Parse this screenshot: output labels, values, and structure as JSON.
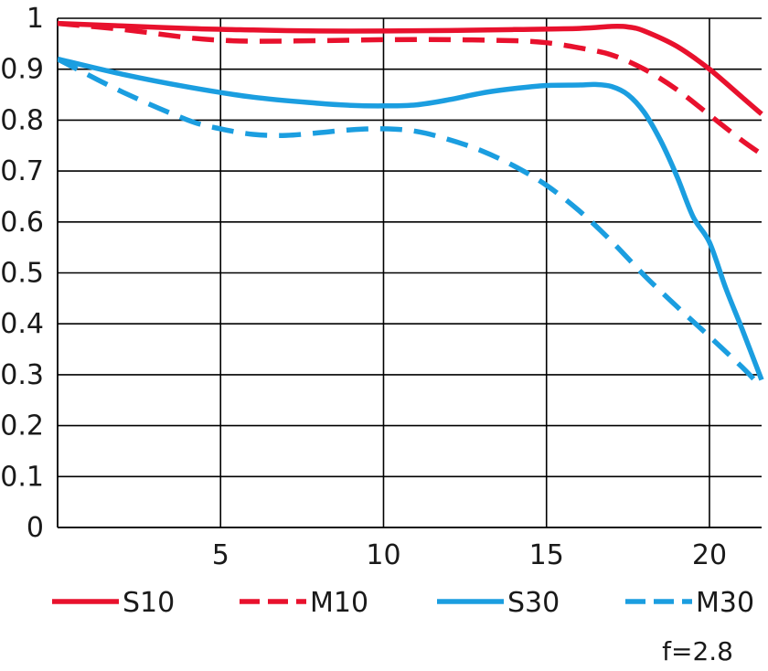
{
  "chart_data": {
    "type": "line",
    "title": "",
    "xlabel": "",
    "ylabel": "",
    "xlim": [
      0,
      21.6
    ],
    "ylim": [
      0,
      1
    ],
    "x_ticks": [
      5,
      10,
      15,
      20
    ],
    "x_tick_labels": [
      "5",
      "10",
      "15",
      "20"
    ],
    "y_ticks": [
      0,
      0.1,
      0.2,
      0.3,
      0.4,
      0.5,
      0.6,
      0.7,
      0.8,
      0.9,
      1
    ],
    "y_tick_labels": [
      "0",
      "0.1",
      "0.2",
      "0.3",
      "0.4",
      "0.5",
      "0.6",
      "0.7",
      "0.8",
      "0.9",
      "1"
    ],
    "grid": true,
    "legend_position": "bottom",
    "note": "f=2.8",
    "series": [
      {
        "name": "S10",
        "color": "#e8112d",
        "dashed": false,
        "x": [
          0,
          2,
          4,
          6,
          8,
          10,
          12,
          14,
          16,
          17,
          17.5,
          18,
          19,
          20,
          21,
          21.6
        ],
        "y": [
          0.99,
          0.985,
          0.98,
          0.977,
          0.975,
          0.975,
          0.976,
          0.978,
          0.98,
          0.984,
          0.983,
          0.975,
          0.945,
          0.9,
          0.845,
          0.812
        ]
      },
      {
        "name": "M10",
        "color": "#e8112d",
        "dashed": true,
        "x": [
          0,
          2,
          4,
          5,
          6,
          8,
          10,
          12,
          14,
          15,
          16,
          17,
          18,
          19,
          20,
          21,
          21.6
        ],
        "y": [
          0.99,
          0.978,
          0.962,
          0.957,
          0.955,
          0.956,
          0.958,
          0.958,
          0.956,
          0.952,
          0.942,
          0.928,
          0.9,
          0.86,
          0.81,
          0.76,
          0.733
        ]
      },
      {
        "name": "S30",
        "color": "#1b9ee0",
        "dashed": false,
        "x": [
          0,
          2,
          4,
          6,
          8,
          9,
          10,
          11,
          12,
          13,
          14,
          15,
          16,
          16.5,
          17,
          17.5,
          18,
          18.5,
          19,
          19.5,
          20,
          20.5,
          21,
          21.6
        ],
        "y": [
          0.92,
          0.89,
          0.865,
          0.845,
          0.833,
          0.829,
          0.828,
          0.83,
          0.84,
          0.853,
          0.862,
          0.868,
          0.869,
          0.87,
          0.866,
          0.85,
          0.815,
          0.76,
          0.69,
          0.61,
          0.56,
          0.47,
          0.39,
          0.29
        ]
      },
      {
        "name": "M30",
        "color": "#1b9ee0",
        "dashed": true,
        "x": [
          0,
          2,
          4,
          5,
          6,
          7,
          8,
          9,
          10,
          11,
          12,
          13,
          14,
          15,
          16,
          17,
          18,
          19,
          20,
          21,
          21.6
        ],
        "y": [
          0.92,
          0.855,
          0.8,
          0.783,
          0.772,
          0.77,
          0.775,
          0.781,
          0.783,
          0.778,
          0.762,
          0.74,
          0.71,
          0.672,
          0.622,
          0.562,
          0.495,
          0.434,
          0.375,
          0.315,
          0.275
        ]
      }
    ]
  }
}
